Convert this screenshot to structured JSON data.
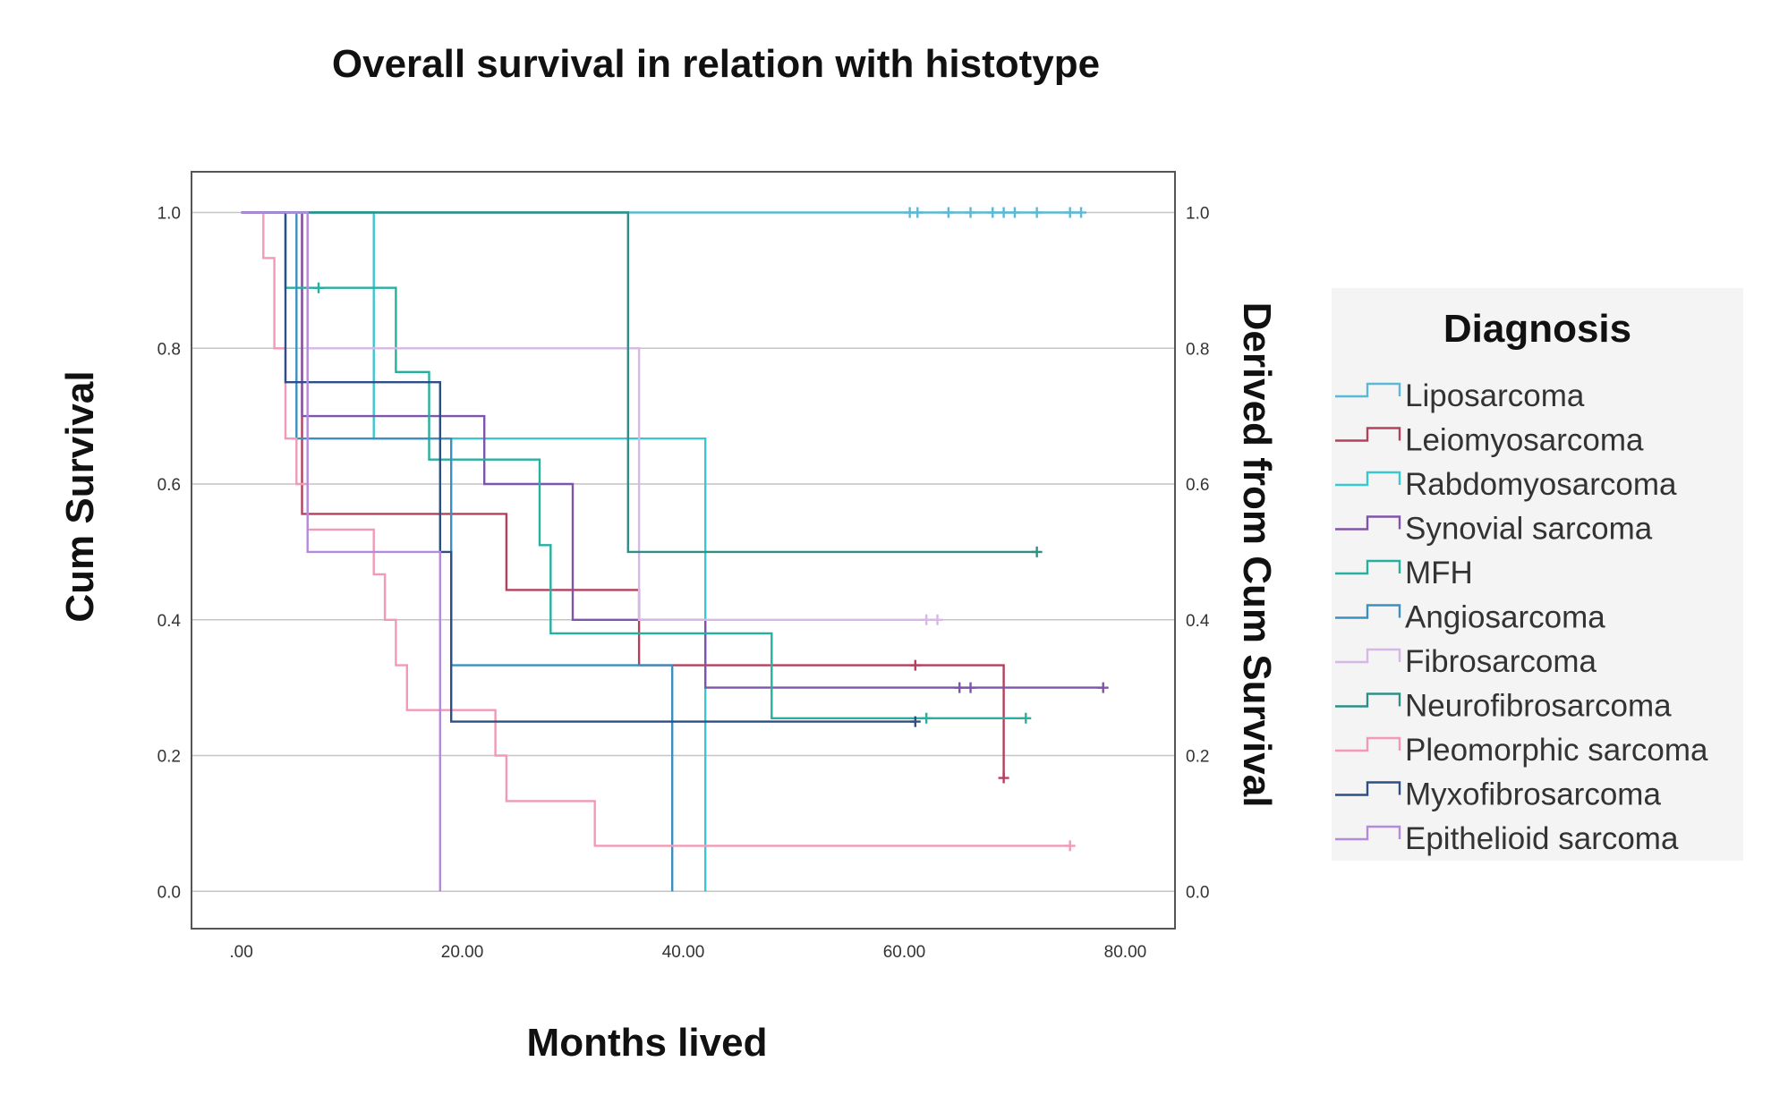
{
  "chart_data": {
    "type": "line",
    "subtype": "kaplan-meier-step",
    "title": "Overall survival in relation with histotype",
    "xlabel": "Months lived",
    "ylabel": "Cum Survival",
    "y2label": "Derived from Cum Survival",
    "xlim": [
      -4.5,
      84.5
    ],
    "ylim": [
      -0.055,
      1.06
    ],
    "xticks": [
      0,
      20,
      40,
      60,
      80
    ],
    "xtick_labels": [
      ".00",
      "20.00",
      "40.00",
      "60.00",
      "80.00"
    ],
    "yticks": [
      0,
      0.2,
      0.4,
      0.6,
      0.8,
      1.0
    ],
    "ytick_labels": [
      "0.0",
      "0.2",
      "0.4",
      "0.6",
      "0.8",
      "1.0"
    ],
    "grid": "horizontal",
    "legend": {
      "title": "Diagnosis",
      "position": "right"
    },
    "series": [
      {
        "name": "Liposarcoma",
        "color": "#5bb8d6",
        "steps": [
          [
            0,
            1.0
          ],
          [
            76,
            1.0
          ]
        ],
        "censored": [
          [
            60.5,
            1.0
          ],
          [
            61.2,
            1.0
          ],
          [
            64,
            1.0
          ],
          [
            66,
            1.0
          ],
          [
            68,
            1.0
          ],
          [
            69,
            1.0
          ],
          [
            70,
            1.0
          ],
          [
            72,
            1.0
          ],
          [
            75,
            1.0
          ],
          [
            76,
            1.0
          ]
        ]
      },
      {
        "name": "Leiomyosarcoma",
        "color": "#b5405e",
        "steps": [
          [
            0,
            1.0
          ],
          [
            5.5,
            1.0
          ],
          [
            5.5,
            0.556
          ],
          [
            24,
            0.556
          ],
          [
            24,
            0.444
          ],
          [
            36,
            0.444
          ],
          [
            36,
            0.333
          ],
          [
            69,
            0.333
          ],
          [
            69,
            0.167
          ]
        ],
        "censored": [
          [
            61,
            0.333
          ],
          [
            69,
            0.167
          ]
        ]
      },
      {
        "name": "Rabdomyosarcoma",
        "color": "#38c9d0",
        "steps": [
          [
            0,
            1.0
          ],
          [
            12,
            1.0
          ],
          [
            12,
            0.667
          ],
          [
            42,
            0.667
          ],
          [
            42,
            0.0
          ]
        ],
        "censored": []
      },
      {
        "name": "Synovial sarcoma",
        "color": "#7e55a8",
        "steps": [
          [
            0,
            1.0
          ],
          [
            5.5,
            1.0
          ],
          [
            5.5,
            0.7
          ],
          [
            22,
            0.7
          ],
          [
            22,
            0.6
          ],
          [
            30,
            0.6
          ],
          [
            30,
            0.4
          ],
          [
            42,
            0.4
          ],
          [
            42,
            0.3
          ],
          [
            78,
            0.3
          ]
        ],
        "censored": [
          [
            65,
            0.3
          ],
          [
            66,
            0.3
          ],
          [
            78,
            0.3
          ]
        ]
      },
      {
        "name": "MFH",
        "color": "#26b0a0",
        "steps": [
          [
            0,
            1.0
          ],
          [
            4,
            1.0
          ],
          [
            4,
            0.889
          ],
          [
            14,
            0.889
          ],
          [
            14,
            0.765
          ],
          [
            17,
            0.765
          ],
          [
            17,
            0.636
          ],
          [
            27,
            0.636
          ],
          [
            27,
            0.51
          ],
          [
            28,
            0.51
          ],
          [
            28,
            0.38
          ],
          [
            48,
            0.38
          ],
          [
            48,
            0.255
          ],
          [
            71,
            0.255
          ]
        ],
        "censored": [
          [
            7,
            0.889
          ],
          [
            62,
            0.255
          ],
          [
            71,
            0.255
          ]
        ]
      },
      {
        "name": "Angiosarcoma",
        "color": "#3a90c0",
        "steps": [
          [
            0,
            1.0
          ],
          [
            5,
            1.0
          ],
          [
            5,
            0.667
          ],
          [
            19,
            0.667
          ],
          [
            19,
            0.333
          ],
          [
            39,
            0.333
          ],
          [
            39,
            0.0
          ]
        ],
        "censored": []
      },
      {
        "name": "Fibrosarcoma",
        "color": "#d6b8e8",
        "steps": [
          [
            0,
            1.0
          ],
          [
            6,
            1.0
          ],
          [
            6,
            0.8
          ],
          [
            36,
            0.8
          ],
          [
            36,
            0.4
          ],
          [
            63,
            0.4
          ]
        ],
        "censored": [
          [
            62,
            0.4
          ],
          [
            63,
            0.4
          ]
        ]
      },
      {
        "name": "Neurofibrosarcoma",
        "color": "#2f8f86",
        "steps": [
          [
            0,
            1.0
          ],
          [
            35,
            1.0
          ],
          [
            35,
            0.5
          ],
          [
            72,
            0.5
          ]
        ],
        "censored": [
          [
            72,
            0.5
          ]
        ]
      },
      {
        "name": "Pleomorphic sarcoma",
        "color": "#f29ab5",
        "steps": [
          [
            0,
            1.0
          ],
          [
            2,
            1.0
          ],
          [
            2,
            0.933
          ],
          [
            3,
            0.933
          ],
          [
            3,
            0.8
          ],
          [
            4,
            0.8
          ],
          [
            4,
            0.667
          ],
          [
            5,
            0.667
          ],
          [
            5,
            0.6
          ],
          [
            6,
            0.6
          ],
          [
            6,
            0.533
          ],
          [
            12,
            0.533
          ],
          [
            12,
            0.467
          ],
          [
            13,
            0.467
          ],
          [
            13,
            0.4
          ],
          [
            14,
            0.4
          ],
          [
            14,
            0.333
          ],
          [
            15,
            0.333
          ],
          [
            15,
            0.267
          ],
          [
            23,
            0.267
          ],
          [
            23,
            0.2
          ],
          [
            24,
            0.2
          ],
          [
            24,
            0.133
          ],
          [
            32,
            0.133
          ],
          [
            32,
            0.067
          ],
          [
            75,
            0.067
          ]
        ],
        "censored": [
          [
            75,
            0.067
          ]
        ]
      },
      {
        "name": "Myxofibrosarcoma",
        "color": "#2c4f85",
        "steps": [
          [
            0,
            1.0
          ],
          [
            4,
            1.0
          ],
          [
            4,
            0.75
          ],
          [
            18,
            0.75
          ],
          [
            18,
            0.5
          ],
          [
            19,
            0.5
          ],
          [
            19,
            0.25
          ],
          [
            61,
            0.25
          ]
        ],
        "censored": [
          [
            61,
            0.25
          ]
        ]
      },
      {
        "name": "Epithelioid sarcoma",
        "color": "#b48ade",
        "steps": [
          [
            0,
            1.0
          ],
          [
            6,
            1.0
          ],
          [
            6,
            0.5
          ],
          [
            18,
            0.5
          ],
          [
            18,
            0.0
          ]
        ],
        "censored": []
      }
    ]
  }
}
